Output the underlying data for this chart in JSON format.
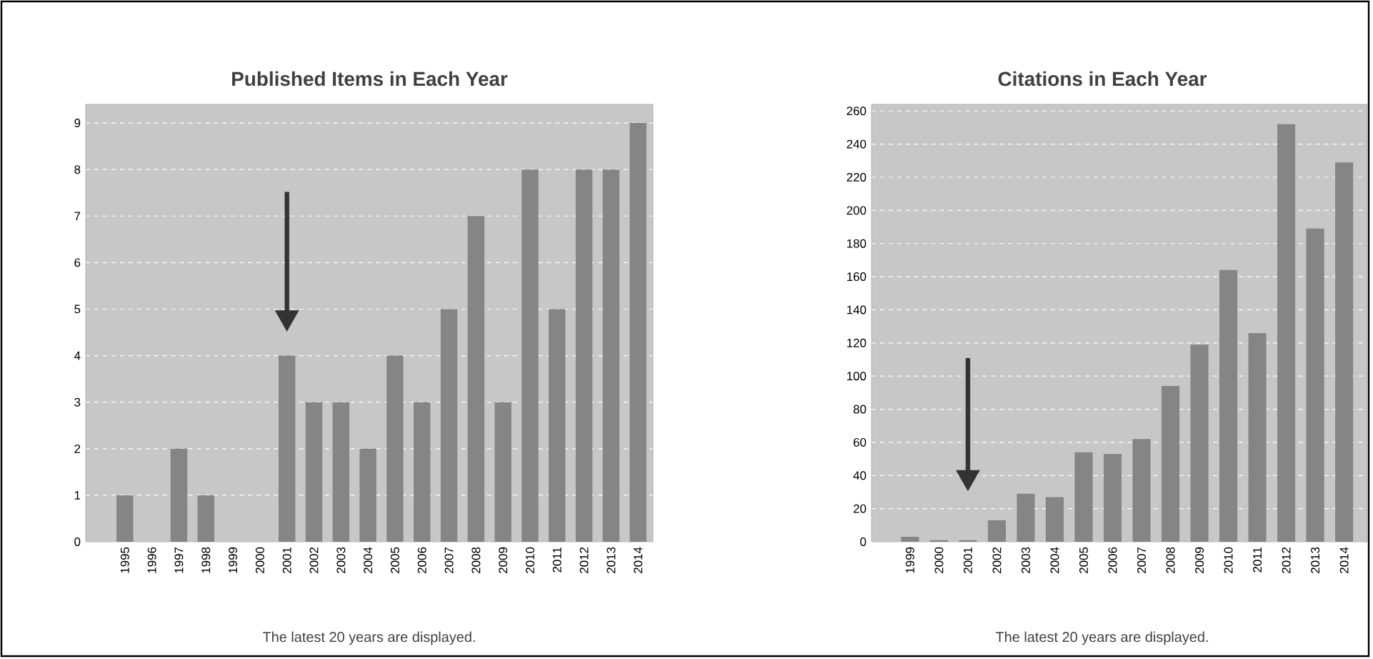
{
  "chart_data": [
    {
      "type": "bar",
      "title": "Published Items in Each Year",
      "categories": [
        "1995",
        "1996",
        "1997",
        "1998",
        "1999",
        "2000",
        "2001",
        "2002",
        "2003",
        "2004",
        "2005",
        "2006",
        "2007",
        "2008",
        "2009",
        "2010",
        "2011",
        "2012",
        "2013",
        "2014"
      ],
      "values": [
        1,
        0,
        2,
        1,
        0,
        0,
        4,
        3,
        3,
        2,
        4,
        3,
        5,
        7,
        3,
        8,
        5,
        8,
        8,
        9
      ],
      "color": "#858585",
      "ylim": [
        0,
        9.4
      ],
      "yticks": [
        0,
        1,
        2,
        3,
        4,
        5,
        6,
        7,
        8,
        9
      ],
      "grid": "y",
      "annotations": [
        "The latest 20 years are displayed."
      ]
    },
    {
      "type": "bar",
      "title": "Citations in Each Year",
      "categories": [
        "1999",
        "2000",
        "2001",
        "2002",
        "2003",
        "2004",
        "2005",
        "2006",
        "2007",
        "2008",
        "2009",
        "2010",
        "2011",
        "2012",
        "2013",
        "2014"
      ],
      "values": [
        3,
        1,
        1,
        13,
        29,
        27,
        54,
        53,
        62,
        94,
        119,
        164,
        126,
        252,
        189,
        229
      ],
      "color": "#858585",
      "ylim": [
        0,
        264
      ],
      "yticks": [
        0,
        20,
        40,
        60,
        80,
        100,
        120,
        140,
        160,
        180,
        200,
        220,
        240,
        260
      ],
      "grid": "y",
      "annotations": [
        "The latest 20 years are displayed."
      ]
    }
  ]
}
